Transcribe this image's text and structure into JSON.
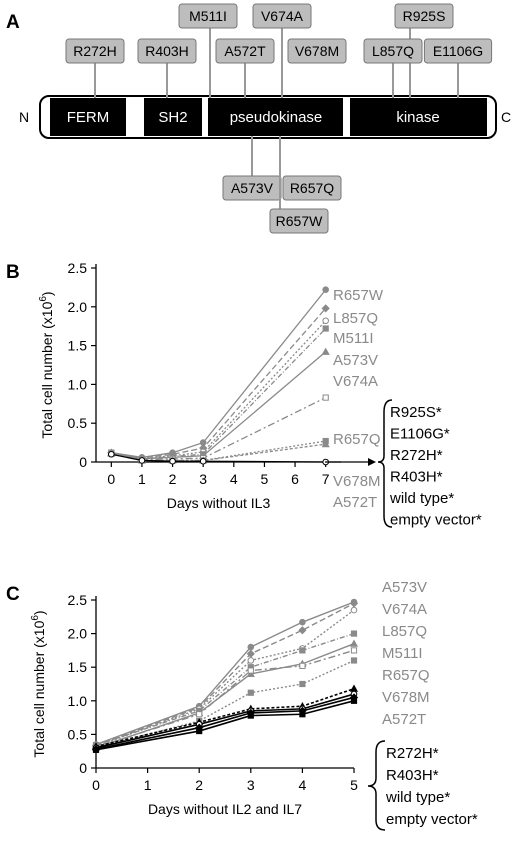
{
  "panels": [
    "A",
    "B",
    "C"
  ],
  "protein": {
    "n_term": "N",
    "c_term": "C",
    "domains": [
      "FERM",
      "SH2",
      "pseudokinase",
      "kinase"
    ],
    "mutations_above": [
      "M511I",
      "V674A",
      "R925S",
      "R272H",
      "R403H",
      "A572T",
      "V678M",
      "L857Q",
      "E1106G"
    ],
    "mutations_below": [
      "A573V",
      "R657Q",
      "R657W"
    ]
  },
  "chart_data": [
    {
      "panel": "B",
      "type": "line",
      "xlabel": "Days without IL3",
      "ylabel": "Total cell number (x10",
      "ylabel_sup": "6",
      "ylabel_end": ")",
      "ylim": [
        0,
        2.5
      ],
      "yticks": [
        "0",
        "0.5",
        "1.0",
        "1.5",
        "2.0",
        "2.5"
      ],
      "xlim": [
        -0.5,
        7.5
      ],
      "xticks": [
        "0",
        "1",
        "2",
        "3",
        "4",
        "5",
        "6",
        "7"
      ],
      "x": [
        0,
        1,
        2,
        3,
        7
      ],
      "series": [
        {
          "name": "R657W",
          "values": [
            0.12,
            0.06,
            0.12,
            0.25,
            2.22
          ]
        },
        {
          "name": "L857Q",
          "values": [
            0.12,
            0.05,
            0.1,
            0.18,
            1.98
          ]
        },
        {
          "name": "M511I",
          "values": [
            0.11,
            0.05,
            0.08,
            0.13,
            1.82
          ]
        },
        {
          "name": "A573V",
          "values": [
            0.12,
            0.04,
            0.07,
            0.1,
            1.72
          ]
        },
        {
          "name": "V674A",
          "values": [
            0.12,
            0.04,
            0.06,
            0.08,
            1.42
          ]
        },
        {
          "name": "R657Q",
          "values": [
            0.11,
            0.03,
            0.04,
            0.05,
            0.83
          ]
        },
        {
          "name": "V678M",
          "values": [
            0.12,
            0.02,
            0.02,
            0.02,
            0.27
          ]
        },
        {
          "name": "A572T",
          "values": [
            0.11,
            0.02,
            0.02,
            0.02,
            0.23
          ]
        },
        {
          "name": "",
          "values": [
            0.1,
            0.02,
            0.01,
            0.01,
            0.0
          ]
        }
      ],
      "legend_group": [
        "R925S*",
        "E1106G*",
        "R272H*",
        "R403H*",
        "wild type*",
        "empty vector*"
      ]
    },
    {
      "panel": "C",
      "type": "line",
      "xlabel": "Days without IL2 and IL7",
      "ylabel": "Total cell number (x10",
      "ylabel_sup": "6",
      "ylabel_end": ")",
      "ylim": [
        0,
        2.5
      ],
      "yticks": [
        "0",
        "0.5",
        "1.0",
        "1.5",
        "2.0",
        "2.5"
      ],
      "xlim": [
        0,
        5
      ],
      "xticks": [
        "0",
        "1",
        "2",
        "3",
        "4",
        "5"
      ],
      "x": [
        0,
        2,
        3,
        4,
        5
      ],
      "series": [
        {
          "name": "A573V",
          "values": [
            0.35,
            0.92,
            1.8,
            2.17,
            2.47
          ]
        },
        {
          "name": "V674A",
          "values": [
            0.33,
            0.9,
            1.7,
            2.05,
            2.45
          ]
        },
        {
          "name": "L857Q",
          "values": [
            0.32,
            0.88,
            1.6,
            1.78,
            2.35
          ]
        },
        {
          "name": "M511I",
          "values": [
            0.34,
            0.85,
            1.5,
            1.75,
            2.0
          ]
        },
        {
          "name": "R657Q",
          "values": [
            0.3,
            0.82,
            1.4,
            1.55,
            1.85
          ]
        },
        {
          "name": "V678M",
          "values": [
            0.31,
            0.8,
            1.45,
            1.52,
            1.75
          ]
        },
        {
          "name": "A572T",
          "values": [
            0.3,
            0.7,
            1.12,
            1.25,
            1.6
          ]
        },
        {
          "name": "R272H*",
          "values": [
            0.32,
            0.68,
            0.88,
            0.92,
            1.18
          ]
        },
        {
          "name": "R403H*",
          "values": [
            0.3,
            0.65,
            0.85,
            0.88,
            1.1
          ]
        },
        {
          "name": "wild type*",
          "values": [
            0.28,
            0.6,
            0.82,
            0.85,
            1.05
          ]
        },
        {
          "name": "empty vector*",
          "values": [
            0.27,
            0.55,
            0.78,
            0.8,
            1.0
          ]
        }
      ]
    }
  ]
}
